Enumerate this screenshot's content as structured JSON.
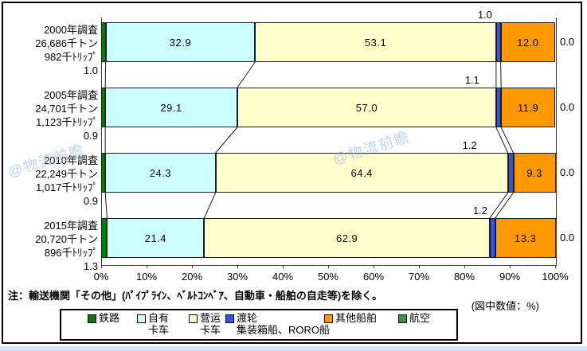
{
  "notes": {
    "exclusion": "注：輸送機関「その他」(ﾊﾟｲﾌﾟﾗｲﾝ、ﾍﾞﾙﾄｺﾝﾍﾞｱ、自動車・船舶の自走等)を除く。",
    "unit": "(図中数値：%)"
  },
  "watermark": {
    "text": "@物流前瞻"
  },
  "chart_data": {
    "type": "bar",
    "orientation": "horizontal-stacked",
    "title": "",
    "xlabel": "",
    "ylabel": "",
    "xlim": [
      0,
      100
    ],
    "grid": false,
    "legend_position": "bottom",
    "value_unit": "%",
    "categories": [
      {
        "line1": "2000年調査",
        "line2": "26,686千トン",
        "line3": "982千ﾄﾘｯﾌﾟ"
      },
      {
        "line1": "2005年調査",
        "line2": "24,701千トン",
        "line3": "1,123千ﾄﾘｯﾌﾟ"
      },
      {
        "line1": "2010年調査",
        "line2": "22,249千トン",
        "line3": "1,017千ﾄﾘｯﾌﾟ"
      },
      {
        "line1": "2015年調査",
        "line2": "20,720千トン",
        "line3": "896千ﾄﾘｯﾌﾟ"
      }
    ],
    "series": [
      {
        "name": "鉄路",
        "color": "#008000",
        "values": [
          1.0,
          0.9,
          0.9,
          1.3
        ]
      },
      {
        "name": "自有卡车",
        "color": "#CCFFFF",
        "values": [
          32.9,
          29.1,
          24.3,
          21.4
        ]
      },
      {
        "name": "营运卡车",
        "color": "#FFFFCC",
        "values": [
          53.1,
          57.0,
          64.4,
          62.9
        ]
      },
      {
        "name": "渡轮 集装箱船、RORO船",
        "color": "#3355DD",
        "values": [
          1.0,
          1.1,
          1.2,
          1.2
        ]
      },
      {
        "name": "其他船舶",
        "color": "#FF9900",
        "values": [
          12.0,
          11.9,
          9.3,
          13.3
        ]
      },
      {
        "name": "航空",
        "color": "#339933",
        "values": [
          0.0,
          0.0,
          0.0,
          0.0
        ]
      }
    ],
    "x_ticks": [
      "0%",
      "10%",
      "20%",
      "30%",
      "40%",
      "50%",
      "60%",
      "70%",
      "80%",
      "90%",
      "100%"
    ]
  },
  "legend": {
    "items": [
      {
        "lines": [
          "鉄路"
        ],
        "color": "#008000"
      },
      {
        "lines": [
          "自有",
          "卡车"
        ],
        "color": "#CCFFFF"
      },
      {
        "lines": [
          "营运",
          "卡车"
        ],
        "color": "#FFFFCC"
      },
      {
        "lines": [
          "渡轮",
          "集装箱船、RORO船"
        ],
        "color": "#3355DD"
      },
      {
        "lines": [
          "其他船舶"
        ],
        "color": "#FF9900"
      },
      {
        "lines": [
          "航空"
        ],
        "color": "#339933"
      }
    ]
  }
}
